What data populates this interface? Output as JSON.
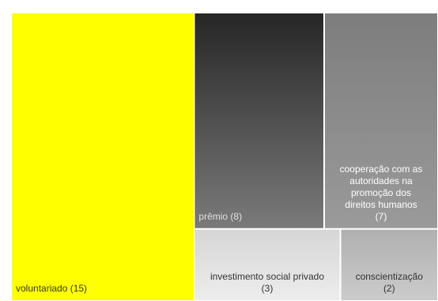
{
  "chart_data": {
    "type": "treemap",
    "title": "",
    "items": [
      {
        "label_lines": [
          "voluntariado (15)"
        ],
        "name": "voluntariado",
        "value": 15,
        "color": "#ffff00",
        "gradient": null,
        "text_color": "#333333"
      },
      {
        "label_lines": [
          "prêmio (8)"
        ],
        "name": "prêmio",
        "value": 8,
        "color": "#4a4a4a",
        "gradient": [
          "#262626",
          "#7a7a7a"
        ],
        "text_color": "#e0e0e0"
      },
      {
        "label_lines": [
          "cooperação com as",
          "autoridades na",
          "promoção dos",
          "direitos humanos",
          "(7)"
        ],
        "name": "cooperação com as autoridades na promoção dos direitos humanos",
        "value": 7,
        "color": "#8c8c8c",
        "gradient": [
          "#7d7d7d",
          "#9a9a9a"
        ],
        "text_color": "#ffffff"
      },
      {
        "label_lines": [
          "investimento social privado",
          "(3)"
        ],
        "name": "investimento social privado",
        "value": 3,
        "color": "#e2e2e2",
        "gradient": [
          "#d6d6d6",
          "#ededed"
        ],
        "text_color": "#333333"
      },
      {
        "label_lines": [
          "conscientização",
          "(2)"
        ],
        "name": "conscientização",
        "value": 2,
        "color": "#bdbdbd",
        "gradient": [
          "#b0b0b0",
          "#cbcbcb"
        ],
        "text_color": "#333333"
      }
    ]
  }
}
